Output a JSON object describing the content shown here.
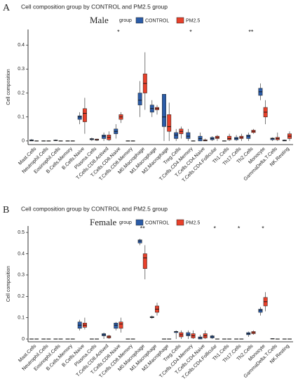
{
  "chart_data": [
    {
      "type": "box",
      "panel_label": "A",
      "title": "Cell composition group by CONTROL and PM2.5 group",
      "subtitle": "Male",
      "y_label": "Cell composition",
      "legend_title": "group",
      "categories": [
        "Mast.Cells",
        "Neutrophil.Cells",
        "Eosinophil.Cells",
        "B.Cells.Memory",
        "B.Cells.Naive",
        "Plasma.Cells",
        "T.Cells.CD8.Actived",
        "T.Cells.CD8.Naive",
        "T.Cells.CD8.Memory",
        "M0.Macrophage",
        "M1.Macrophage",
        "M2.Macrophage",
        "Treg.Cells",
        "T.Cells.CD4.Memory",
        "T.Cells.CD4.Naive",
        "T.Cells.CD4.Follicular",
        "Th1.Cells",
        "Th17.Cells",
        "Th2.Cells",
        "Monocyte",
        "GammaDelta.T.Cells",
        "NK.Resting"
      ],
      "significance": [
        null,
        null,
        null,
        null,
        null,
        null,
        null,
        "*",
        null,
        null,
        null,
        null,
        null,
        "*",
        null,
        null,
        null,
        null,
        "**",
        null,
        null,
        null
      ],
      "series": [
        {
          "name": "CONTROL",
          "color": "#2b5ca8",
          "low": [
            0,
            0,
            0,
            0,
            0.07,
            0,
            0,
            0.01,
            0,
            0.1,
            0.1,
            0,
            0,
            0,
            0,
            0,
            0,
            0,
            0,
            0.17,
            0,
            0
          ],
          "q1": [
            0,
            0,
            0.001,
            0,
            0.09,
            0.005,
            0.01,
            0.03,
            0,
            0.15,
            0.12,
            0.06,
            0.01,
            0.01,
            0,
            0.005,
            0,
            0.005,
            0.01,
            0.19,
            0.005,
            0
          ],
          "median": [
            0.002,
            0,
            0.002,
            0,
            0.1,
            0.008,
            0.02,
            0.04,
            0,
            0.17,
            0.135,
            0.1,
            0.025,
            0.02,
            0.01,
            0.01,
            0,
            0.01,
            0.02,
            0.205,
            0.01,
            0.002
          ],
          "q3": [
            0.005,
            0.001,
            0.004,
            0.001,
            0.105,
            0.01,
            0.025,
            0.05,
            0.001,
            0.2,
            0.15,
            0.195,
            0.035,
            0.035,
            0.02,
            0.015,
            0.001,
            0.015,
            0.025,
            0.22,
            0.012,
            0.004
          ],
          "high": [
            0.008,
            0.002,
            0.006,
            0.002,
            0.12,
            0.014,
            0.035,
            0.07,
            0.002,
            0.25,
            0.17,
            0.195,
            0.05,
            0.05,
            0.035,
            0.02,
            0.002,
            0.025,
            0.035,
            0.24,
            0.015,
            0.006
          ]
        },
        {
          "name": "PM2.5",
          "color": "#e8402a",
          "low": [
            0,
            0,
            0,
            0,
            0.03,
            0,
            0,
            0.075,
            0,
            0.13,
            0.11,
            0,
            0.01,
            0,
            0,
            0,
            0,
            0,
            0.03,
            0.07,
            0,
            0
          ],
          "q1": [
            0,
            0,
            0,
            0,
            0.08,
            0.003,
            0.005,
            0.09,
            0,
            0.2,
            0.13,
            0.04,
            0.03,
            0,
            0,
            0.01,
            0.005,
            0.01,
            0.035,
            0.1,
            0.005,
            0.01
          ],
          "median": [
            0,
            0,
            0,
            0,
            0.115,
            0.005,
            0.015,
            0.1,
            0,
            0.24,
            0.135,
            0.06,
            0.04,
            0,
            0.002,
            0.015,
            0.01,
            0.015,
            0.04,
            0.12,
            0.01,
            0.02
          ],
          "q3": [
            0.001,
            0.001,
            0.001,
            0.001,
            0.135,
            0.008,
            0.025,
            0.11,
            0.001,
            0.28,
            0.14,
            0.11,
            0.05,
            0.001,
            0.005,
            0.02,
            0.02,
            0.02,
            0.045,
            0.14,
            0.015,
            0.03
          ],
          "high": [
            0.002,
            0.002,
            0.002,
            0.002,
            0.18,
            0.01,
            0.04,
            0.12,
            0.002,
            0.37,
            0.15,
            0.16,
            0.06,
            0.002,
            0.01,
            0.025,
            0.03,
            0.03,
            0.05,
            0.17,
            0.035,
            0.04
          ]
        }
      ],
      "ylim": [
        -0.015,
        0.465
      ],
      "yticks": [
        0.0,
        0.1,
        0.2,
        0.3,
        0.4
      ]
    },
    {
      "type": "box",
      "panel_label": "B",
      "title": "Cell composition group by CONTROL and PM2.5 group",
      "subtitle": "Female",
      "y_label": "Cell composition",
      "legend_title": "group",
      "categories": [
        "Mast.Cells",
        "Neutrophil.Cells",
        "Eosinophil.Cells",
        "B.Cells.Memory",
        "B.Cells.Naive",
        "Plasma.Cells",
        "T.Cells.CD8.Actived",
        "T.Cells.CD8.Naive",
        "T.Cells.CD8.Memory",
        "M0.Macrophage",
        "M1.Macrophage",
        "M2.Macrophage",
        "Treg.Cells",
        "T.Cells.CD4.Memory",
        "T.Cells.CD4.Naive",
        "T.Cells.CD4.Follicular",
        "Th1.Cells",
        "Th17.Cells",
        "Th2.Cells",
        "Monocyte",
        "GammaDelta.T.Cells",
        "NK.Resting"
      ],
      "significance": [
        null,
        null,
        null,
        null,
        null,
        null,
        null,
        null,
        null,
        "**",
        null,
        null,
        null,
        null,
        null,
        "*",
        null,
        "*",
        null,
        "*",
        null,
        null
      ],
      "series": [
        {
          "name": "CONTROL",
          "color": "#2b5ca8",
          "low": [
            0,
            0,
            0,
            0,
            0.04,
            0,
            0,
            0.04,
            0,
            0.44,
            0.095,
            0,
            0,
            0,
            0,
            0,
            0,
            0,
            0.01,
            0.11,
            0,
            0
          ],
          "q1": [
            0,
            0,
            0,
            0,
            0.05,
            0,
            0.015,
            0.05,
            0,
            0.45,
            0.1,
            0,
            0.03,
            0.015,
            0,
            0.005,
            0,
            0,
            0.02,
            0.125,
            0,
            0
          ],
          "median": [
            0,
            0,
            0,
            0,
            0.065,
            0,
            0.02,
            0.065,
            0,
            0.46,
            0.102,
            0,
            0.035,
            0.02,
            0.005,
            0.01,
            0,
            0,
            0.025,
            0.135,
            0.001,
            0
          ],
          "q3": [
            0.001,
            0.001,
            0.001,
            0.001,
            0.08,
            0.001,
            0.025,
            0.075,
            0.001,
            0.465,
            0.105,
            0.001,
            0.035,
            0.03,
            0.01,
            0.015,
            0.001,
            0.001,
            0.03,
            0.14,
            0.002,
            0.001
          ],
          "high": [
            0.002,
            0.002,
            0.002,
            0.002,
            0.09,
            0.002,
            0.03,
            0.08,
            0.002,
            0.47,
            0.11,
            0.002,
            0.04,
            0.04,
            0.02,
            0.02,
            0.002,
            0.002,
            0.035,
            0.15,
            0.003,
            0.002
          ]
        },
        {
          "name": "PM2.5",
          "color": "#e8402a",
          "low": [
            0,
            0,
            0,
            0,
            0.045,
            0,
            0,
            0.03,
            0,
            0.28,
            0.11,
            0,
            0,
            0,
            0,
            0,
            0,
            0,
            0.02,
            0.13,
            0,
            0
          ],
          "q1": [
            0,
            0,
            0,
            0,
            0.055,
            0,
            0.005,
            0.05,
            0,
            0.33,
            0.125,
            0,
            0.01,
            0.005,
            0.005,
            0,
            0,
            0,
            0.025,
            0.155,
            0,
            0
          ],
          "median": [
            0,
            0,
            0,
            0,
            0.065,
            0,
            0.01,
            0.07,
            0,
            0.38,
            0.14,
            0,
            0.02,
            0.015,
            0.015,
            0,
            0,
            0,
            0.03,
            0.175,
            0,
            0
          ],
          "q3": [
            0.001,
            0.001,
            0.001,
            0.001,
            0.075,
            0.001,
            0.015,
            0.08,
            0.001,
            0.4,
            0.155,
            0.001,
            0.03,
            0.025,
            0.025,
            0.001,
            0.001,
            0.001,
            0.035,
            0.195,
            0.001,
            0.001
          ],
          "high": [
            0.002,
            0.002,
            0.002,
            0.002,
            0.1,
            0.002,
            0.02,
            0.1,
            0.002,
            0.44,
            0.17,
            0.002,
            0.04,
            0.04,
            0.04,
            0.002,
            0.002,
            0.002,
            0.04,
            0.22,
            0.002,
            0.002
          ]
        }
      ],
      "ylim": [
        -0.013,
        0.53
      ],
      "yticks": [
        0.0,
        0.1,
        0.2,
        0.3,
        0.4,
        0.5
      ]
    }
  ]
}
